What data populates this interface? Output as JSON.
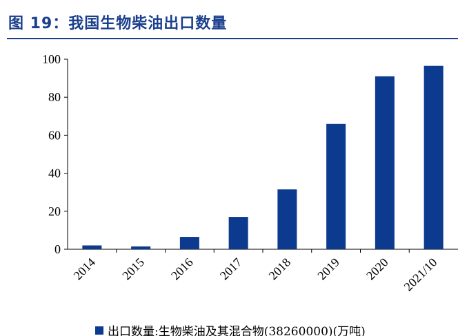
{
  "figure": {
    "title": "图 19：我国生物柴油出口数量"
  },
  "chart_data": {
    "type": "bar",
    "title": "图 19：我国生物柴油出口数量",
    "categories": [
      "2014",
      "2015",
      "2016",
      "2017",
      "2018",
      "2019",
      "2020",
      "2021/10"
    ],
    "series": [
      {
        "name": "出口数量:生物柴油及其混合物(38260000)(万吨)",
        "color": "#0b3a8f",
        "values": [
          2.0,
          1.5,
          6.5,
          17.0,
          31.5,
          66.0,
          91.0,
          96.5
        ]
      }
    ],
    "yticks": [
      "0",
      "20",
      "40",
      "60",
      "80",
      "100"
    ],
    "ylim": [
      0,
      100
    ],
    "xlabel": "",
    "ylabel": "",
    "grid": false,
    "legend_position": "bottom"
  }
}
